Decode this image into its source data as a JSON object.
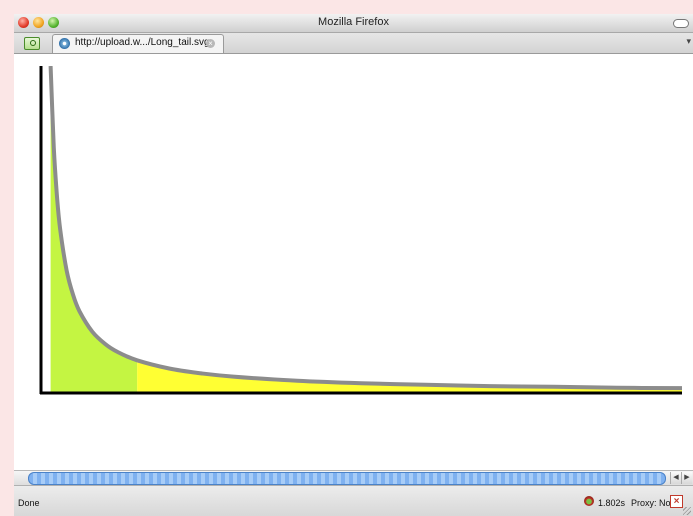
{
  "window": {
    "title": "Mozilla Firefox"
  },
  "tabs": [
    {
      "url": "http://upload.w.../Long_tail.svg"
    }
  ],
  "status": {
    "text": "Done",
    "timing": "1.802s",
    "proxy": "Proxy: None"
  },
  "colors": {
    "head": "#c4f542",
    "tail": "#ffff33",
    "curve": "#8c8c8c",
    "axis": "#000000",
    "scroll_thumb": "#7fb1f0"
  },
  "icons": {
    "window_controls": [
      "close-icon",
      "minimize-icon",
      "zoom-icon"
    ],
    "tab_favicon": "wikimedia-icon",
    "tab_close": "close-icon",
    "toolbar_toggle": "toolbar-toggle-icon",
    "status": [
      "firebug-icon",
      "proxy-disabled-icon",
      "resize-grip-icon"
    ]
  },
  "chart_data": {
    "type": "area",
    "title": "",
    "xlabel": "",
    "ylabel": "",
    "xlim": [
      0,
      100
    ],
    "ylim": [
      0,
      100
    ],
    "grid": false,
    "x": [
      1.5,
      2,
      2.5,
      3,
      4,
      5,
      6,
      8,
      10,
      12,
      15,
      20,
      25,
      30,
      40,
      50,
      60,
      70,
      80,
      90,
      100
    ],
    "y": [
      100,
      75,
      60,
      50,
      37.5,
      30,
      25,
      18.75,
      15,
      12.5,
      10,
      7.5,
      6,
      5,
      3.75,
      3,
      2.5,
      2.1,
      1.9,
      1.6,
      1.5
    ],
    "head_end_x": 15,
    "series": [
      {
        "region": "head",
        "x_range": [
          0,
          15
        ]
      },
      {
        "region": "tail",
        "x_range": [
          15,
          100
        ]
      }
    ]
  }
}
